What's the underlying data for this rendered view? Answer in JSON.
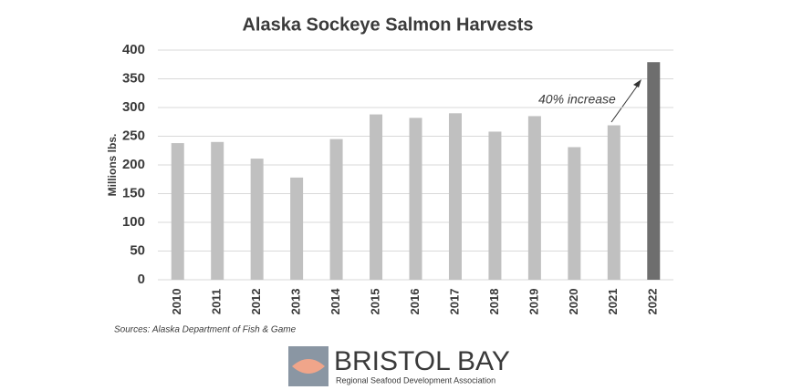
{
  "chart_data": {
    "type": "bar",
    "title": "Alaska Sockeye Salmon Harvests",
    "y_label": "Millions lbs.",
    "categories": [
      "2010",
      "2011",
      "2012",
      "2013",
      "2014",
      "2015",
      "2016",
      "2017",
      "2018",
      "2019",
      "2020",
      "2021",
      "2022"
    ],
    "values": [
      238,
      240,
      211,
      178,
      245,
      288,
      282,
      290,
      258,
      285,
      231,
      269,
      379
    ],
    "colors": [
      "#c0c0c0",
      "#c0c0c0",
      "#c0c0c0",
      "#c0c0c0",
      "#c0c0c0",
      "#c0c0c0",
      "#c0c0c0",
      "#c0c0c0",
      "#c0c0c0",
      "#c0c0c0",
      "#c0c0c0",
      "#c0c0c0",
      "#6e6e6e"
    ],
    "ylim": [
      0,
      400
    ],
    "yticks": [
      0,
      50,
      100,
      150,
      200,
      250,
      300,
      350,
      400
    ],
    "grid": true,
    "annotation": "40% increase",
    "source": "Sources: Alaska Department of Fish & Game"
  },
  "logo": {
    "name": "BRISTOL BAY",
    "tagline": "Regional Seafood Development Association"
  }
}
